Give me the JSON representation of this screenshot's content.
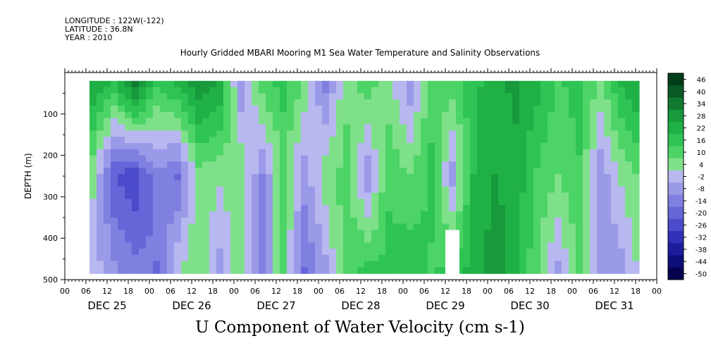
{
  "header": {
    "longitude": "LONGITUDE : 122W(-122)",
    "latitude": "LATITUDE : 36.8N",
    "year": "YEAR : 2010"
  },
  "chart_data": {
    "type": "heatmap",
    "title": "Hourly Gridded MBARI Mooring M1 Sea Water Temperature and Salinity Observations",
    "xlabel": "U Component of Water Velocity (cm s-1)",
    "ylabel": "DEPTH (m)",
    "ylim": [
      500,
      0
    ],
    "y_ticks": [
      100,
      200,
      300,
      400,
      500
    ],
    "x_hour_ticks": [
      "00",
      "06",
      "12",
      "18",
      "00",
      "06",
      "12",
      "18",
      "00",
      "06",
      "12",
      "18",
      "00",
      "06",
      "12",
      "18",
      "00",
      "06",
      "12",
      "18",
      "00",
      "06",
      "12",
      "18",
      "00",
      "06",
      "12",
      "18",
      "00"
    ],
    "x_day_labels": [
      "DEC 25",
      "DEC 26",
      "DEC 27",
      "DEC 28",
      "DEC 29",
      "DEC 30",
      "DEC 31"
    ],
    "colorbar_labels": [
      "46",
      "40",
      "34",
      "28",
      "22",
      "16",
      "10",
      "4",
      "-2",
      "-8",
      "-14",
      "-20",
      "-26",
      "-32",
      "-38",
      "-44",
      "-50"
    ],
    "colorbar_colors": [
      "#003d1a",
      "#0a5a25",
      "#107a30",
      "#17993c",
      "#1fb046",
      "#2ec454",
      "#4dd466",
      "#7fe08a",
      "#b8b8f0",
      "#9a9ae8",
      "#8080e0",
      "#6666d8",
      "#4b4bcc",
      "#3030b8",
      "#1c1c9c",
      "#0e0e7a",
      "#040450"
    ],
    "data_x_range_hours": [
      7,
      163
    ],
    "data_depth_range_m": [
      20,
      485
    ],
    "profiles": [
      {
        "x_hours": 8,
        "top": 30,
        "mid": 5,
        "bottom": 0
      },
      {
        "x_hours": 14,
        "top": 25,
        "mid": -20,
        "bottom": -5
      },
      {
        "x_hours": 20,
        "top": 45,
        "mid": -25,
        "bottom": -10
      },
      {
        "x_hours": 26,
        "top": 20,
        "mid": -10,
        "bottom": -15
      },
      {
        "x_hours": 32,
        "top": 28,
        "mid": -15,
        "bottom": 5
      },
      {
        "x_hours": 38,
        "top": 35,
        "mid": 8,
        "bottom": 10
      },
      {
        "x_hours": 44,
        "top": 30,
        "mid": 5,
        "bottom": -5
      },
      {
        "x_hours": 50,
        "top": -10,
        "mid": 10,
        "bottom": 8
      },
      {
        "x_hours": 56,
        "top": 15,
        "mid": -8,
        "bottom": -10
      },
      {
        "x_hours": 62,
        "top": 20,
        "mid": 10,
        "bottom": 12
      },
      {
        "x_hours": 68,
        "top": 10,
        "mid": -5,
        "bottom": -15
      },
      {
        "x_hours": 74,
        "top": -12,
        "mid": 8,
        "bottom": -5
      },
      {
        "x_hours": 80,
        "top": 8,
        "mid": 12,
        "bottom": 15
      },
      {
        "x_hours": 86,
        "top": 15,
        "mid": -6,
        "bottom": 20
      },
      {
        "x_hours": 92,
        "top": 5,
        "mid": 15,
        "bottom": 18
      },
      {
        "x_hours": 98,
        "top": -8,
        "mid": 10,
        "bottom": 22
      },
      {
        "x_hours": 104,
        "top": 12,
        "mid": 18,
        "bottom": 15
      },
      {
        "x_hours": 110,
        "top": 15,
        "mid": -5,
        "bottom": 20
      },
      {
        "x_hours": 116,
        "top": 20,
        "mid": 22,
        "bottom": 25
      },
      {
        "x_hours": 122,
        "top": 25,
        "mid": 28,
        "bottom": 32
      },
      {
        "x_hours": 128,
        "top": 30,
        "mid": 26,
        "bottom": 25
      },
      {
        "x_hours": 134,
        "top": 25,
        "mid": 15,
        "bottom": 10
      },
      {
        "x_hours": 140,
        "top": 15,
        "mid": 10,
        "bottom": -5
      },
      {
        "x_hours": 146,
        "top": 20,
        "mid": 15,
        "bottom": 12
      },
      {
        "x_hours": 152,
        "top": 10,
        "mid": -6,
        "bottom": -8
      },
      {
        "x_hours": 158,
        "top": 25,
        "mid": 5,
        "bottom": -5
      },
      {
        "x_hours": 163,
        "top": 30,
        "mid": 10,
        "bottom": 5
      }
    ]
  }
}
